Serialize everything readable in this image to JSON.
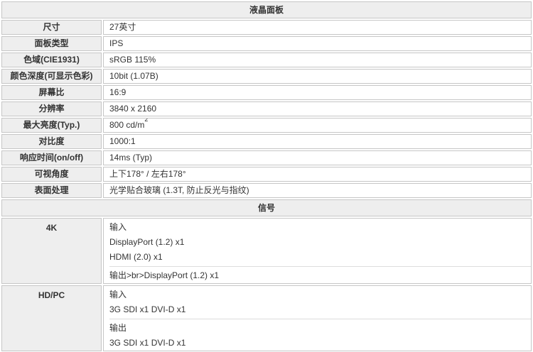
{
  "colors": {
    "header_bg": "#eeeeee",
    "cell_border": "#c6c6c6",
    "separator_line": "#dddddd",
    "text": "#333333",
    "value_bg": "#ffffff"
  },
  "sections": [
    {
      "header": "液晶面板",
      "rows": [
        {
          "label": "尺寸",
          "value": "27英寸"
        },
        {
          "label": "面板类型",
          "value": "IPS"
        },
        {
          "label": "色域(CIE1931)",
          "value": "sRGB 115%"
        },
        {
          "label": "颜色深度(可显示色彩)",
          "value": "10bit (1.07B)"
        },
        {
          "label": "屏幕比",
          "value": "16:9"
        },
        {
          "label": "分辨率",
          "value": "3840 x 2160"
        },
        {
          "label": "最大亮度(Typ.)",
          "value": "800 cd/m",
          "value_sup": "2"
        },
        {
          "label": "对比度",
          "value": "1000:1"
        },
        {
          "label": "响应时间(on/off)",
          "value": "14ms (Typ)"
        },
        {
          "label": "可视角度",
          "value": "上下178° / 左右178°"
        },
        {
          "label": "表面处理",
          "value": "光学贴合玻璃 (1.3T, 防止反光与指纹)"
        }
      ]
    },
    {
      "header": "信号",
      "rows": [
        {
          "label": "4K",
          "input_lines": [
            "输入",
            "DisplayPort (1.2) x1",
            "HDMI (2.0) x1"
          ],
          "output_lines": [
            "输出>br>DisplayPort (1.2) x1"
          ]
        },
        {
          "label": "HD/PC",
          "input_lines": [
            "输入",
            "3G SDI x1 DVI-D x1"
          ],
          "output_lines": [
            "输出",
            "3G SDI x1 DVI-D x1"
          ]
        }
      ]
    }
  ]
}
